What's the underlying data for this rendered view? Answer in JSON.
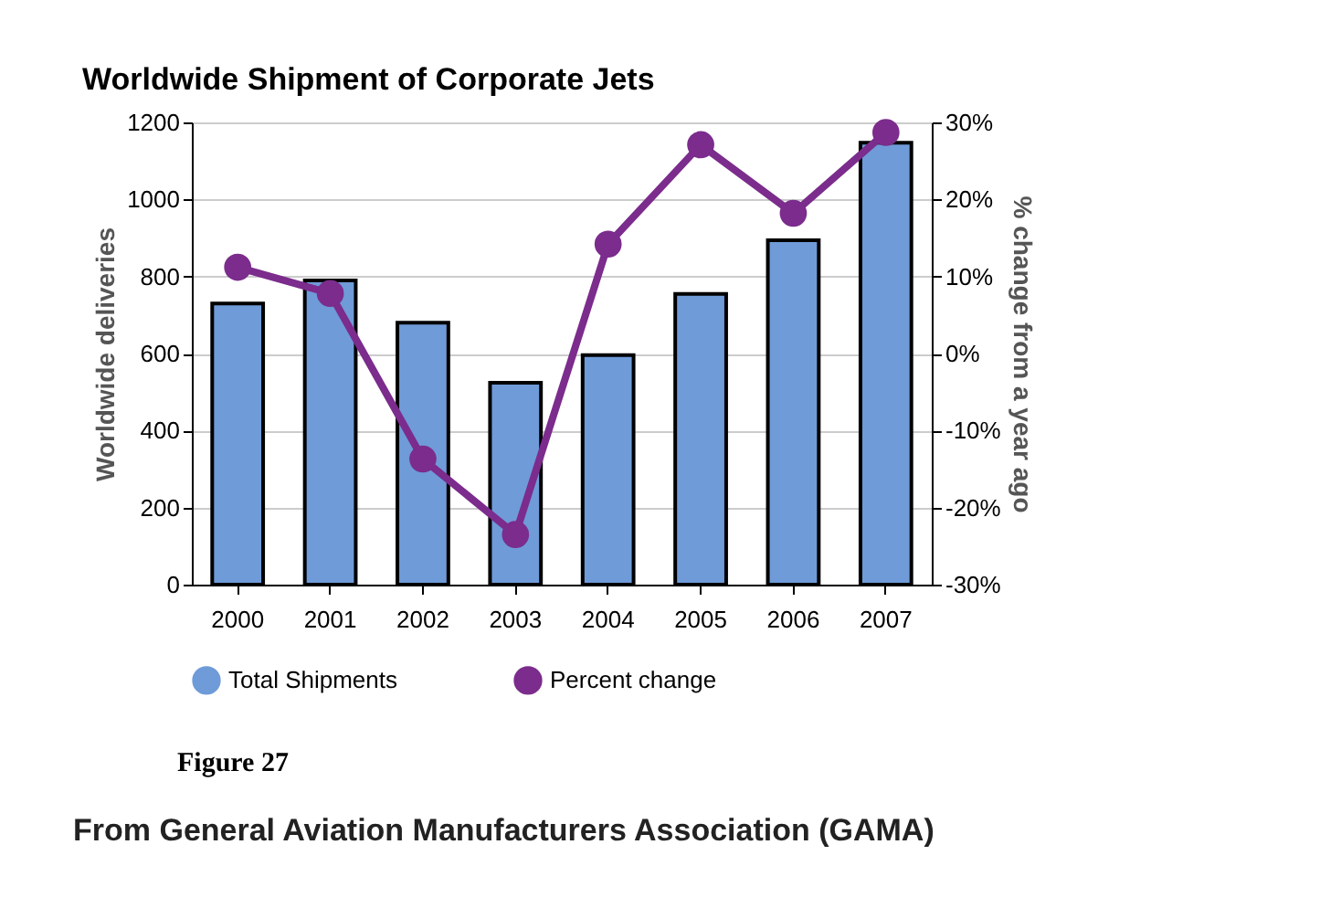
{
  "chart_data": {
    "type": "bar",
    "title": "Worldwide Shipment of Corporate Jets",
    "ylabel": "Worldwide deliveries",
    "y2label": "% change from a year ago",
    "categories": [
      "2000",
      "2001",
      "2002",
      "2003",
      "2004",
      "2005",
      "2006",
      "2007"
    ],
    "series": [
      {
        "name": "Total Shipments",
        "color": "#6f9bd8",
        "values": [
          730,
          790,
          680,
          524,
          596,
          755,
          894,
          1147
        ]
      },
      {
        "name": "Percent change",
        "type": "line",
        "axis": "y2",
        "color": "#7b2c8c",
        "values": [
          11.2,
          7.8,
          -13.7,
          -23.5,
          14.2,
          27.1,
          18.2,
          28.7
        ]
      }
    ],
    "ylim": [
      0,
      1200
    ],
    "yticks": [
      0,
      200,
      400,
      600,
      800,
      1000,
      1200
    ],
    "y2lim": [
      -30,
      30
    ],
    "y2ticks": [
      {
        "value": -30,
        "label": "-30%"
      },
      {
        "value": -20,
        "label": "-20%"
      },
      {
        "value": -10,
        "label": "-10%"
      },
      {
        "value": 0,
        "label": "0%"
      },
      {
        "value": 10,
        "label": "10%"
      },
      {
        "value": 20,
        "label": "20%"
      },
      {
        "value": 30,
        "label": "30%"
      }
    ],
    "grid": "y",
    "legend": "bottom",
    "marker": "circle",
    "annotations": [
      "Figure 27",
      "From General Aviation Manufacturers Association (GAMA)"
    ]
  }
}
